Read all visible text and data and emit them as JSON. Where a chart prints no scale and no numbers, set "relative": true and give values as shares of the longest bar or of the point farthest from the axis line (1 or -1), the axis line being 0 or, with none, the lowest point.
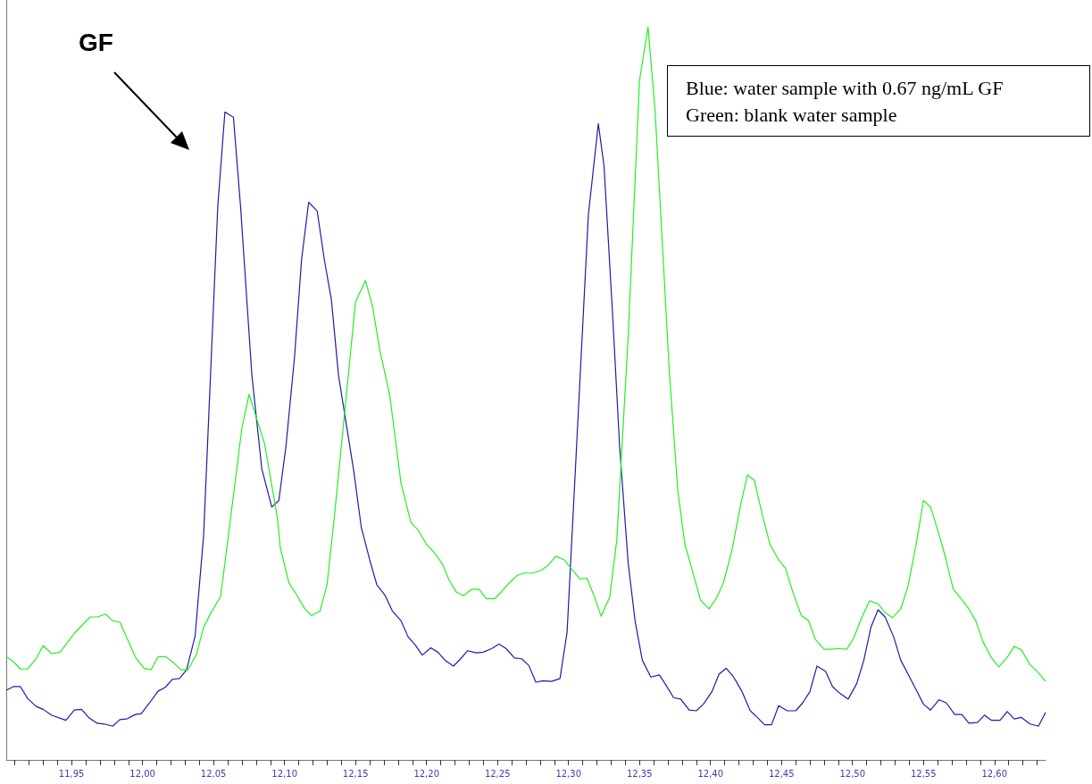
{
  "chart_data": {
    "type": "line",
    "relative": true,
    "xlim": [
      11.904,
      12.636
    ],
    "xticks": [
      {
        "value": 11.91,
        "label": null
      },
      {
        "value": 11.92,
        "label": null
      },
      {
        "value": 11.93,
        "label": null
      },
      {
        "value": 11.94,
        "label": null
      },
      {
        "value": 11.95,
        "label": "11,95"
      },
      {
        "value": 11.96,
        "label": null
      },
      {
        "value": 11.97,
        "label": null
      },
      {
        "value": 11.98,
        "label": null
      },
      {
        "value": 11.99,
        "label": null
      },
      {
        "value": 12.0,
        "label": "12,00"
      },
      {
        "value": 12.01,
        "label": null
      },
      {
        "value": 12.02,
        "label": null
      },
      {
        "value": 12.03,
        "label": null
      },
      {
        "value": 12.04,
        "label": null
      },
      {
        "value": 12.05,
        "label": "12,05"
      },
      {
        "value": 12.06,
        "label": null
      },
      {
        "value": 12.07,
        "label": null
      },
      {
        "value": 12.08,
        "label": null
      },
      {
        "value": 12.09,
        "label": null
      },
      {
        "value": 12.1,
        "label": "12,10"
      },
      {
        "value": 12.11,
        "label": null
      },
      {
        "value": 12.12,
        "label": null
      },
      {
        "value": 12.13,
        "label": null
      },
      {
        "value": 12.14,
        "label": null
      },
      {
        "value": 12.15,
        "label": "12,15"
      },
      {
        "value": 12.16,
        "label": null
      },
      {
        "value": 12.17,
        "label": null
      },
      {
        "value": 12.18,
        "label": null
      },
      {
        "value": 12.19,
        "label": null
      },
      {
        "value": 12.2,
        "label": "12,20"
      },
      {
        "value": 12.21,
        "label": null
      },
      {
        "value": 12.22,
        "label": null
      },
      {
        "value": 12.23,
        "label": null
      },
      {
        "value": 12.24,
        "label": null
      },
      {
        "value": 12.25,
        "label": "12,25"
      },
      {
        "value": 12.26,
        "label": null
      },
      {
        "value": 12.27,
        "label": null
      },
      {
        "value": 12.28,
        "label": null
      },
      {
        "value": 12.29,
        "label": null
      },
      {
        "value": 12.3,
        "label": "12,30"
      },
      {
        "value": 12.31,
        "label": null
      },
      {
        "value": 12.32,
        "label": null
      },
      {
        "value": 12.33,
        "label": null
      },
      {
        "value": 12.34,
        "label": null
      },
      {
        "value": 12.35,
        "label": "12,35"
      },
      {
        "value": 12.36,
        "label": null
      },
      {
        "value": 12.37,
        "label": null
      },
      {
        "value": 12.38,
        "label": null
      },
      {
        "value": 12.39,
        "label": null
      },
      {
        "value": 12.4,
        "label": "12,40"
      },
      {
        "value": 12.41,
        "label": null
      },
      {
        "value": 12.42,
        "label": null
      },
      {
        "value": 12.43,
        "label": null
      },
      {
        "value": 12.44,
        "label": null
      },
      {
        "value": 12.45,
        "label": "12,45"
      },
      {
        "value": 12.46,
        "label": null
      },
      {
        "value": 12.47,
        "label": null
      },
      {
        "value": 12.48,
        "label": null
      },
      {
        "value": 12.49,
        "label": null
      },
      {
        "value": 12.5,
        "label": "12,50"
      },
      {
        "value": 12.51,
        "label": null
      },
      {
        "value": 12.52,
        "label": null
      },
      {
        "value": 12.53,
        "label": null
      },
      {
        "value": 12.54,
        "label": null
      },
      {
        "value": 12.55,
        "label": "12,55"
      },
      {
        "value": 12.56,
        "label": null
      },
      {
        "value": 12.57,
        "label": null
      },
      {
        "value": 12.58,
        "label": null
      },
      {
        "value": 12.59,
        "label": null
      },
      {
        "value": 12.6,
        "label": "12,60"
      },
      {
        "value": 12.61,
        "label": null
      },
      {
        "value": 12.62,
        "label": null
      },
      {
        "value": 12.63,
        "label": null
      }
    ],
    "annotations": [
      "GF",
      "Blue: water sample with 0.67 ng/mL GF",
      "Green: blank water sample"
    ],
    "series": [
      {
        "color": "#1c1ca8",
        "x": [
          11.904,
          11.909,
          11.914,
          11.919,
          11.925,
          11.93,
          11.936,
          11.946,
          11.952,
          11.957,
          11.962,
          11.968,
          11.973,
          11.979,
          11.984,
          11.989,
          11.995,
          11.999,
          12.005,
          12.011,
          12.016,
          12.021,
          12.026,
          12.031,
          12.037,
          12.043,
          12.053,
          12.058,
          12.064,
          12.069,
          12.077,
          12.084,
          12.091,
          12.096,
          12.101,
          12.107,
          12.112,
          12.117,
          12.123,
          12.128,
          12.133,
          12.138,
          12.144,
          12.149,
          12.154,
          12.16,
          12.165,
          12.171,
          12.176,
          12.182,
          12.187,
          12.192,
          12.197,
          12.203,
          12.208,
          12.213,
          12.219,
          12.224,
          12.229,
          12.235,
          12.24,
          12.246,
          12.251,
          12.256,
          12.262,
          12.267,
          12.272,
          12.277,
          12.282,
          12.288,
          12.294,
          12.299,
          12.314,
          12.321,
          12.325,
          12.331,
          12.336,
          12.342,
          12.347,
          12.352,
          12.358,
          12.364,
          12.369,
          12.374,
          12.379,
          12.385,
          12.39,
          12.395,
          12.401,
          12.406,
          12.411,
          12.416,
          12.422,
          12.428,
          12.433,
          12.438,
          12.443,
          12.448,
          12.454,
          12.46,
          12.465,
          12.47,
          12.475,
          12.481,
          12.486,
          12.491,
          12.497,
          12.503,
          12.508,
          12.513,
          12.518,
          12.523,
          12.529,
          12.534,
          12.54,
          12.545,
          12.55,
          12.555,
          12.561,
          12.566,
          12.572,
          12.577,
          12.582,
          12.588,
          12.593,
          12.598,
          12.604,
          12.609,
          12.614,
          12.619,
          12.625,
          12.631,
          12.636
        ],
        "values": [
          0.095,
          0.1,
          0.1,
          0.084,
          0.073,
          0.069,
          0.061,
          0.054,
          0.068,
          0.069,
          0.058,
          0.05,
          0.049,
          0.046,
          0.055,
          0.056,
          0.062,
          0.063,
          0.078,
          0.094,
          0.099,
          0.11,
          0.111,
          0.123,
          0.169,
          0.306,
          0.756,
          0.884,
          0.877,
          0.756,
          0.525,
          0.397,
          0.345,
          0.354,
          0.428,
          0.549,
          0.683,
          0.761,
          0.749,
          0.683,
          0.628,
          0.525,
          0.452,
          0.391,
          0.318,
          0.273,
          0.239,
          0.224,
          0.203,
          0.19,
          0.168,
          0.157,
          0.143,
          0.153,
          0.147,
          0.136,
          0.128,
          0.138,
          0.149,
          0.146,
          0.147,
          0.152,
          0.158,
          0.152,
          0.139,
          0.138,
          0.129,
          0.106,
          0.108,
          0.107,
          0.111,
          0.174,
          0.744,
          0.868,
          0.811,
          0.61,
          0.428,
          0.269,
          0.188,
          0.136,
          0.113,
          0.116,
          0.101,
          0.085,
          0.083,
          0.068,
          0.067,
          0.076,
          0.093,
          0.117,
          0.125,
          0.114,
          0.094,
          0.067,
          0.058,
          0.048,
          0.048,
          0.074,
          0.067,
          0.067,
          0.078,
          0.093,
          0.128,
          0.121,
          0.1,
          0.091,
          0.083,
          0.104,
          0.136,
          0.181,
          0.205,
          0.195,
          0.168,
          0.136,
          0.114,
          0.095,
          0.076,
          0.068,
          0.082,
          0.078,
          0.062,
          0.062,
          0.05,
          0.051,
          0.061,
          0.054,
          0.054,
          0.066,
          0.056,
          0.058,
          0.049,
          0.046,
          0.065
        ]
      },
      {
        "color": "#22f022",
        "x": [
          11.904,
          11.909,
          11.914,
          11.919,
          11.925,
          11.93,
          11.936,
          11.942,
          11.952,
          11.963,
          11.968,
          11.974,
          11.979,
          11.984,
          11.99,
          11.995,
          12.001,
          12.006,
          12.011,
          12.016,
          12.021,
          12.027,
          12.032,
          12.038,
          12.043,
          12.048,
          12.055,
          12.062,
          12.07,
          12.075,
          12.086,
          12.095,
          12.097,
          12.103,
          12.108,
          12.114,
          12.119,
          12.125,
          12.13,
          12.135,
          12.15,
          12.157,
          12.162,
          12.167,
          12.174,
          12.182,
          12.189,
          12.194,
          12.2,
          12.205,
          12.211,
          12.216,
          12.221,
          12.226,
          12.232,
          12.237,
          12.242,
          12.248,
          12.253,
          12.258,
          12.264,
          12.269,
          12.275,
          12.281,
          12.286,
          12.291,
          12.297,
          12.302,
          12.308,
          12.313,
          12.318,
          12.323,
          12.329,
          12.334,
          12.342,
          12.35,
          12.356,
          12.361,
          12.371,
          12.377,
          12.382,
          12.388,
          12.393,
          12.399,
          12.404,
          12.409,
          12.415,
          12.421,
          12.426,
          12.431,
          12.437,
          12.442,
          12.448,
          12.453,
          12.458,
          12.464,
          12.469,
          12.474,
          12.48,
          12.485,
          12.49,
          12.496,
          12.501,
          12.506,
          12.512,
          12.518,
          12.523,
          12.528,
          12.534,
          12.539,
          12.545,
          12.55,
          12.555,
          12.56,
          12.565,
          12.571,
          12.577,
          12.582,
          12.587,
          12.592,
          12.598,
          12.603,
          12.609,
          12.614,
          12.619,
          12.625,
          12.631,
          12.636
        ],
        "values": [
          0.141,
          0.134,
          0.124,
          0.124,
          0.138,
          0.156,
          0.145,
          0.147,
          0.173,
          0.195,
          0.195,
          0.199,
          0.19,
          0.188,
          0.162,
          0.14,
          0.125,
          0.123,
          0.141,
          0.141,
          0.134,
          0.123,
          0.123,
          0.144,
          0.181,
          0.2,
          0.223,
          0.33,
          0.453,
          0.499,
          0.431,
          0.33,
          0.29,
          0.242,
          0.227,
          0.207,
          0.197,
          0.203,
          0.24,
          0.33,
          0.625,
          0.654,
          0.619,
          0.56,
          0.499,
          0.378,
          0.324,
          0.314,
          0.294,
          0.284,
          0.268,
          0.245,
          0.229,
          0.224,
          0.233,
          0.233,
          0.22,
          0.22,
          0.23,
          0.241,
          0.252,
          0.255,
          0.255,
          0.259,
          0.266,
          0.278,
          0.273,
          0.261,
          0.247,
          0.248,
          0.224,
          0.196,
          0.222,
          0.3,
          0.577,
          0.927,
          1,
          0.886,
          0.53,
          0.367,
          0.294,
          0.253,
          0.218,
          0.206,
          0.22,
          0.241,
          0.285,
          0.346,
          0.389,
          0.381,
          0.33,
          0.294,
          0.273,
          0.261,
          0.229,
          0.197,
          0.19,
          0.164,
          0.151,
          0.151,
          0.152,
          0.151,
          0.167,
          0.192,
          0.217,
          0.213,
          0.201,
          0.194,
          0.206,
          0.236,
          0.296,
          0.354,
          0.345,
          0.314,
          0.28,
          0.233,
          0.219,
          0.206,
          0.189,
          0.161,
          0.139,
          0.127,
          0.14,
          0.155,
          0.15,
          0.13,
          0.119,
          0.107
        ]
      }
    ]
  }
}
